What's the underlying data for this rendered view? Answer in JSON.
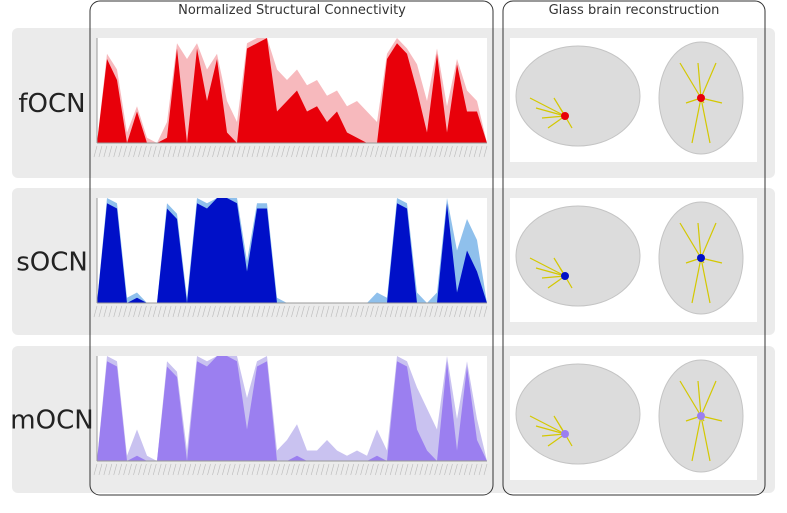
{
  "headers": [
    "Normalized Structural Connectivity",
    "Glass brain reconstruction"
  ],
  "rows": [
    {
      "label": "fOCN",
      "chart": {
        "type": "area",
        "ylim": [
          0,
          1
        ],
        "series": [
          {
            "color": "#f7b9bd",
            "values": [
              0,
              0.85,
              0.7,
              0.1,
              0.35,
              0.05,
              0,
              0.2,
              0.95,
              0.8,
              0.95,
              0.7,
              0.85,
              0.4,
              0.2,
              0.95,
              1,
              1,
              0.7,
              0.6,
              0.7,
              0.55,
              0.6,
              0.45,
              0.5,
              0.35,
              0.4,
              0.3,
              0.2,
              0.85,
              1,
              0.9,
              0.75,
              0.4,
              0.9,
              0.35,
              0.8,
              0.5,
              0.4,
              0
            ]
          },
          {
            "color": "#e8000a",
            "values": [
              0,
              0.8,
              0.6,
              0,
              0.3,
              0,
              0,
              0.05,
              0.9,
              0,
              0.9,
              0.4,
              0.8,
              0.1,
              0,
              0.9,
              0.95,
              1,
              0.3,
              0.4,
              0.5,
              0.3,
              0.35,
              0.2,
              0.3,
              0.1,
              0.05,
              0,
              0,
              0.8,
              0.95,
              0.85,
              0.5,
              0.1,
              0.85,
              0.1,
              0.75,
              0.3,
              0.3,
              0
            ]
          }
        ]
      }
    },
    {
      "label": "sOCN",
      "chart": {
        "type": "area",
        "ylim": [
          0,
          1
        ],
        "series": [
          {
            "color": "#8fc0ec",
            "values": [
              0,
              1,
              0.95,
              0.05,
              0.1,
              0,
              0,
              0.95,
              0.85,
              0.05,
              1,
              0.95,
              1,
              1,
              1,
              0.4,
              0.95,
              0.95,
              0.05,
              0,
              0,
              0,
              0,
              0,
              0,
              0,
              0,
              0,
              0.1,
              0.05,
              1,
              0.95,
              0.1,
              0,
              0.1,
              1,
              0.5,
              0.8,
              0.6,
              0
            ]
          },
          {
            "color": "#0010c8",
            "values": [
              0,
              0.95,
              0.9,
              0,
              0.05,
              0,
              0,
              0.9,
              0.8,
              0,
              0.95,
              0.9,
              1,
              1,
              0.95,
              0.3,
              0.9,
              0.9,
              0,
              0,
              0,
              0,
              0,
              0,
              0,
              0,
              0,
              0,
              0,
              0,
              0.95,
              0.9,
              0,
              0,
              0,
              0.95,
              0.1,
              0.5,
              0.3,
              0
            ]
          }
        ]
      }
    },
    {
      "label": "mOCN",
      "chart": {
        "type": "area",
        "ylim": [
          0,
          1
        ],
        "series": [
          {
            "color": "#c9c2f0",
            "values": [
              0,
              1,
              0.95,
              0.05,
              0.3,
              0.05,
              0,
              0.95,
              0.85,
              0.1,
              1,
              0.95,
              1,
              1,
              1,
              0.6,
              0.95,
              1,
              0.1,
              0.2,
              0.35,
              0.1,
              0.1,
              0.2,
              0.1,
              0.05,
              0.1,
              0.05,
              0.3,
              0.1,
              1,
              0.95,
              0.7,
              0.5,
              0.3,
              1,
              0.4,
              0.95,
              0.4,
              0
            ]
          },
          {
            "color": "#9b7ff0",
            "values": [
              0,
              0.95,
              0.9,
              0,
              0.05,
              0,
              0,
              0.9,
              0.8,
              0,
              0.95,
              0.9,
              1,
              1,
              0.95,
              0.3,
              0.9,
              0.95,
              0,
              0,
              0.05,
              0,
              0,
              0,
              0,
              0,
              0,
              0,
              0.05,
              0,
              0.95,
              0.9,
              0.3,
              0.1,
              0,
              0.95,
              0.1,
              0.9,
              0.2,
              0
            ]
          }
        ]
      }
    }
  ]
}
